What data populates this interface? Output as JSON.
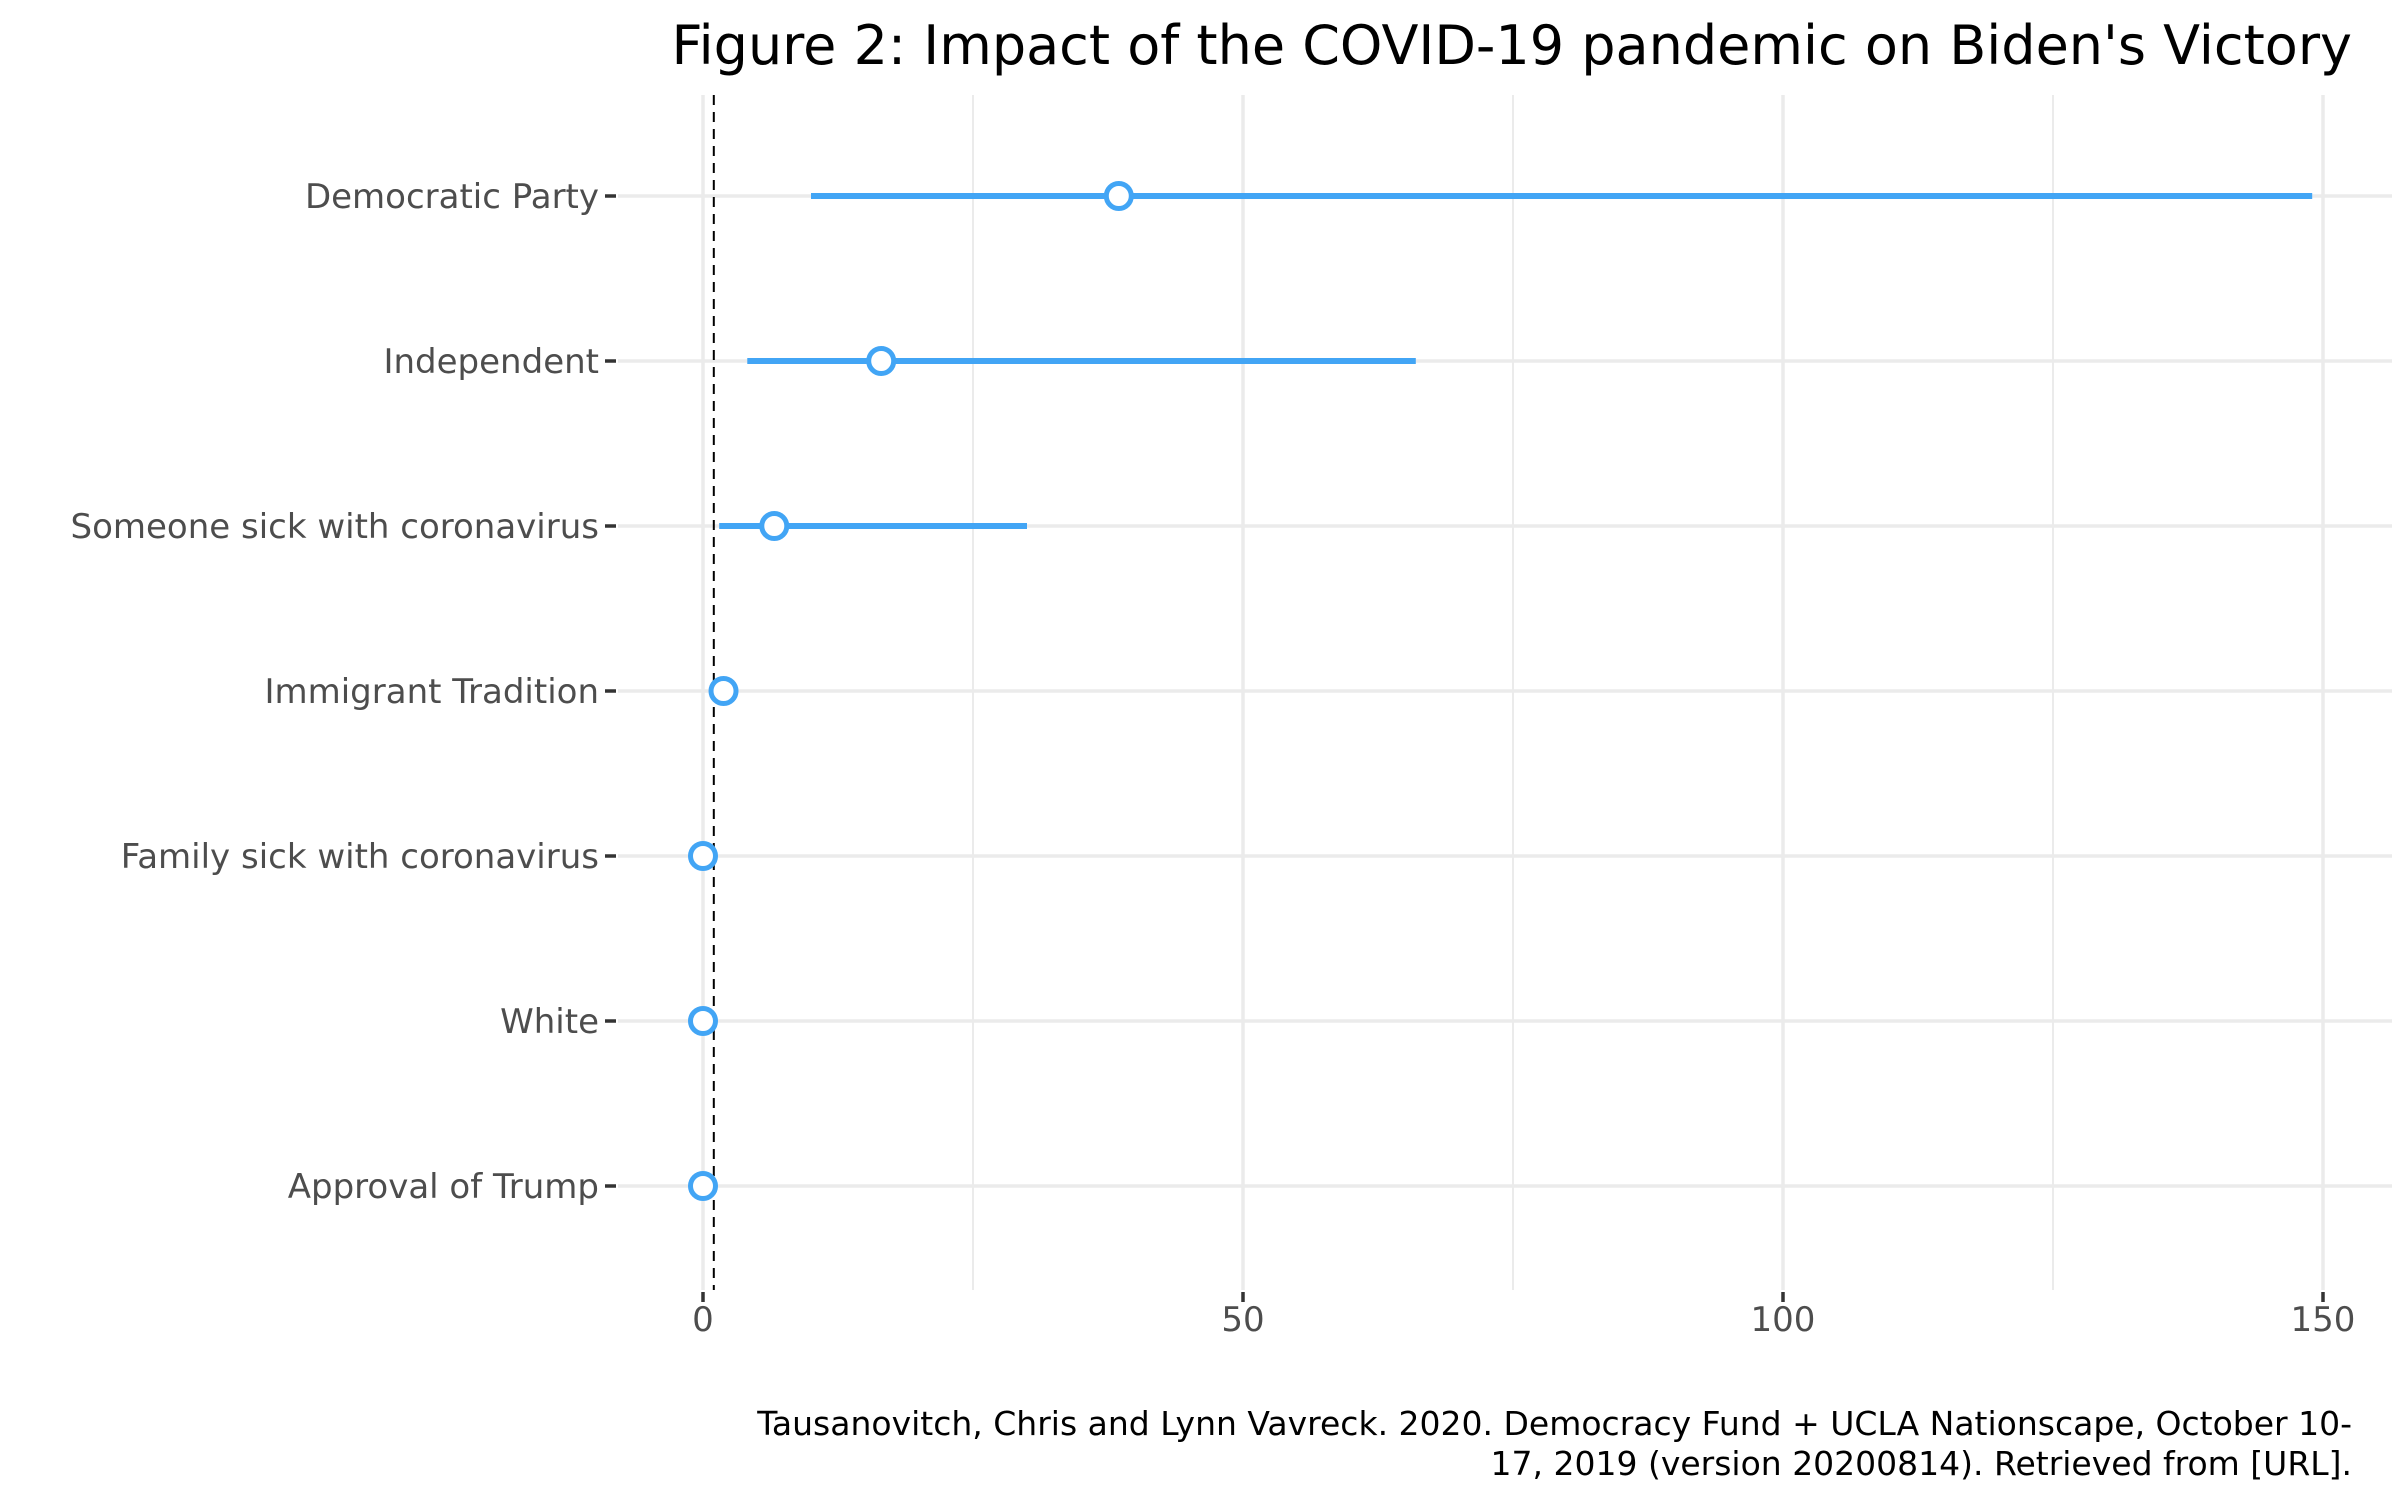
{
  "chart_data": {
    "type": "scatter",
    "variant": "dot-with-interval",
    "title": "Figure 2: Impact of the COVID-19 pandemic on Biden's Victory",
    "xlabel": "",
    "ylabel": "",
    "xlim": [
      -2,
      157
    ],
    "x_ticks": [
      0,
      50,
      100,
      150
    ],
    "x_tick_labels": [
      "0",
      "50",
      "100",
      "150"
    ],
    "reference_line": {
      "x": 1,
      "style": "dashed"
    },
    "grid": true,
    "legend": "none",
    "categories": [
      "Democratic Party",
      "Independent",
      "Someone sick with coronavirus",
      "Immigrant Tradition",
      "Family sick with coronavirus",
      "White",
      "Approval of Trump"
    ],
    "points": [
      {
        "label": "Democratic Party",
        "estimate": 38.5,
        "low": 10.0,
        "high": 149.0
      },
      {
        "label": "Independent",
        "estimate": 16.5,
        "low": 4.1,
        "high": 66.0
      },
      {
        "label": "Someone sick with coronavirus",
        "estimate": 6.6,
        "low": 1.5,
        "high": 30.0
      },
      {
        "label": "Immigrant Tradition",
        "estimate": 1.9,
        "low": 1.5,
        "high": 2.3
      },
      {
        "label": "Family sick with coronavirus",
        "estimate": 0.0,
        "low": -0.2,
        "high": 0.2
      },
      {
        "label": "White",
        "estimate": 0.0,
        "low": -0.2,
        "high": 0.2
      },
      {
        "label": "Approval of Trump",
        "estimate": 0.0,
        "low": -0.2,
        "high": 0.2
      }
    ],
    "caption": [
      "Tausanovitch, Chris and Lynn Vavreck. 2020. Democracy Fund + UCLA Nationscape, October 10-",
      "17, 2019 (version 20200814). Retrieved from [URL]."
    ],
    "colors": {
      "series": "#42a5f5",
      "grid": "#ebebeb",
      "reference": "#000000",
      "tick_text": "#4d4d4d"
    }
  }
}
